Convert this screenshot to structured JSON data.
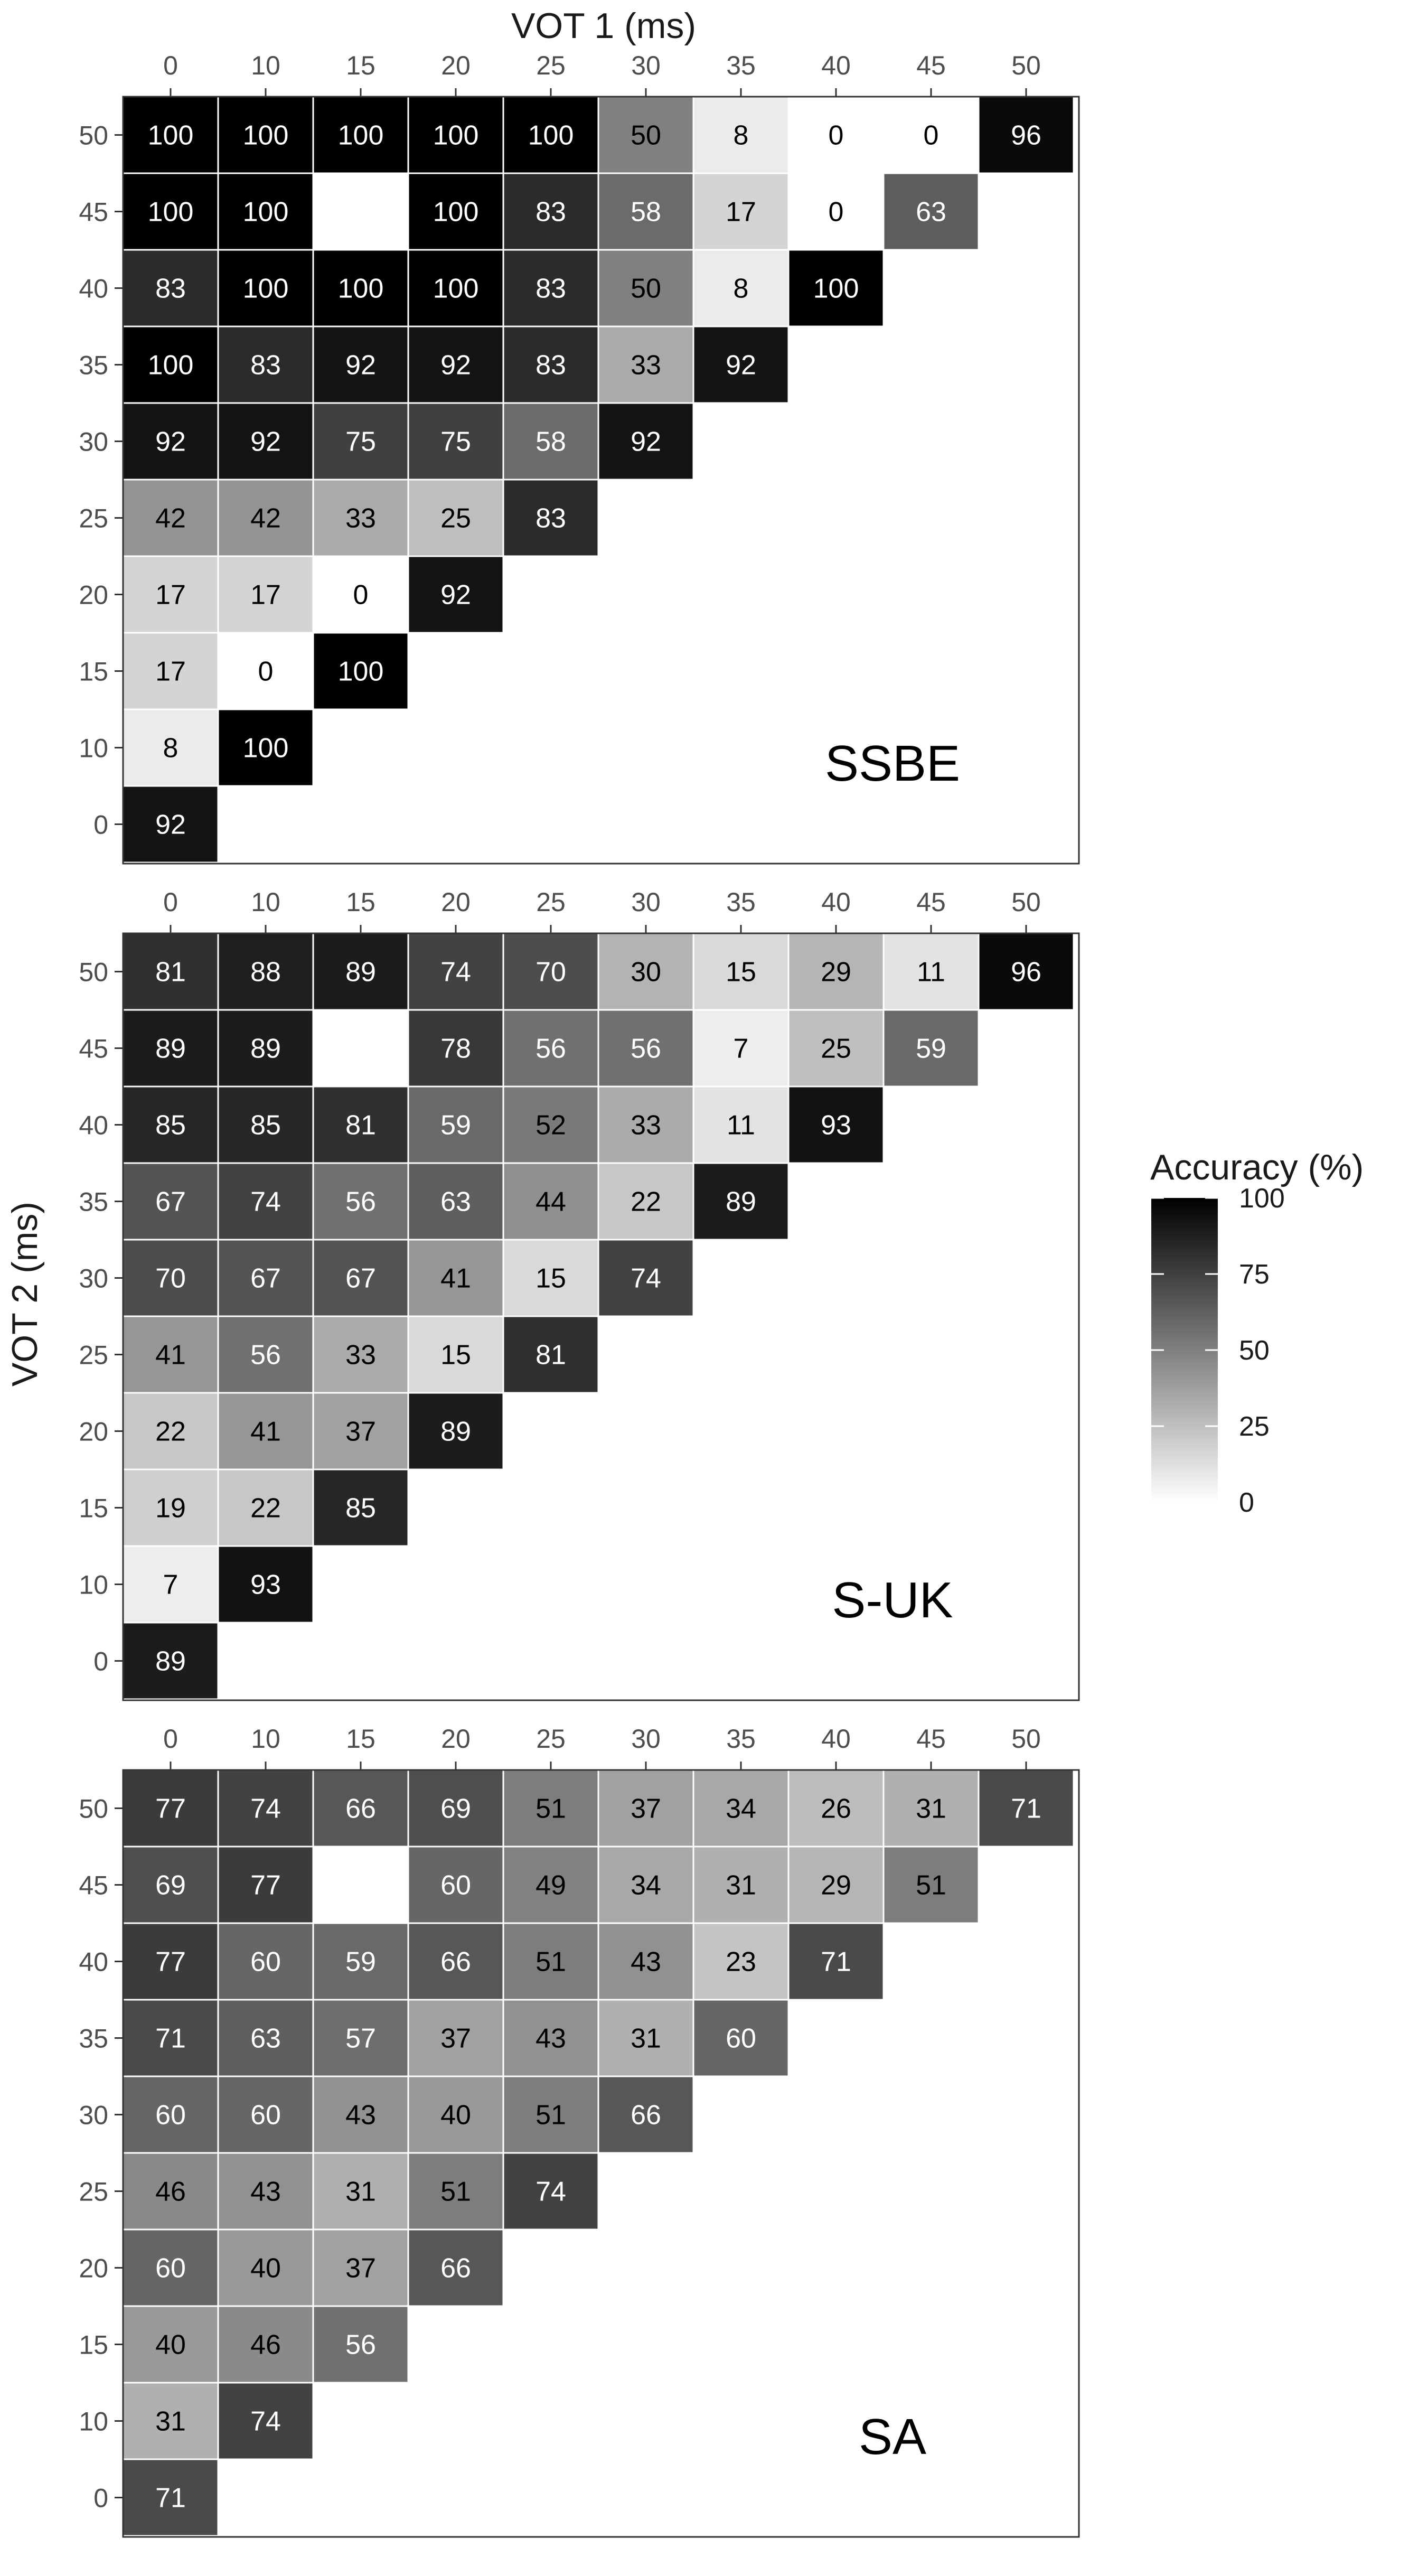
{
  "xlabel": "VOT 1 (ms)",
  "ylabel": "VOT 2 (ms)",
  "legend": {
    "title": "Accuracy (%)",
    "ticks": [
      0,
      25,
      50,
      75,
      100
    ],
    "range": [
      0,
      100
    ],
    "colors": {
      "low": "#ffffff",
      "high": "#000000"
    },
    "placement": "right"
  },
  "chart_data": [
    {
      "type": "heatmap",
      "title": "SSBE",
      "x": [
        0,
        10,
        15,
        20,
        25,
        30,
        35,
        40,
        45,
        50
      ],
      "y": [
        50,
        45,
        40,
        35,
        30,
        25,
        20,
        15,
        10,
        0
      ],
      "values": [
        [
          100,
          100,
          100,
          100,
          100,
          50,
          8,
          0,
          0,
          96
        ],
        [
          100,
          100,
          null,
          100,
          83,
          58,
          17,
          0,
          63
        ],
        [
          83,
          100,
          100,
          100,
          83,
          50,
          8,
          100
        ],
        [
          100,
          83,
          92,
          92,
          83,
          33,
          92
        ],
        [
          92,
          92,
          75,
          75,
          58,
          92
        ],
        [
          42,
          42,
          33,
          25,
          83
        ],
        [
          17,
          17,
          0,
          92
        ],
        [
          17,
          0,
          100
        ],
        [
          8,
          100
        ],
        [
          92
        ]
      ],
      "value_range": [
        0,
        100
      ]
    },
    {
      "type": "heatmap",
      "title": "S-UK",
      "x": [
        0,
        10,
        15,
        20,
        25,
        30,
        35,
        40,
        45,
        50
      ],
      "y": [
        50,
        45,
        40,
        35,
        30,
        25,
        20,
        15,
        10,
        0
      ],
      "values": [
        [
          81,
          88,
          89,
          74,
          70,
          30,
          15,
          29,
          11,
          96
        ],
        [
          89,
          89,
          null,
          78,
          56,
          56,
          7,
          25,
          59
        ],
        [
          85,
          85,
          81,
          59,
          52,
          33,
          11,
          93
        ],
        [
          67,
          74,
          56,
          63,
          44,
          22,
          89
        ],
        [
          70,
          67,
          67,
          41,
          15,
          74
        ],
        [
          41,
          56,
          33,
          15,
          81
        ],
        [
          22,
          41,
          37,
          89
        ],
        [
          19,
          22,
          85
        ],
        [
          7,
          93
        ],
        [
          89
        ]
      ],
      "value_range": [
        0,
        100
      ]
    },
    {
      "type": "heatmap",
      "title": "SA",
      "x": [
        0,
        10,
        15,
        20,
        25,
        30,
        35,
        40,
        45,
        50
      ],
      "y": [
        50,
        45,
        40,
        35,
        30,
        25,
        20,
        15,
        10,
        0
      ],
      "values": [
        [
          77,
          74,
          66,
          69,
          51,
          37,
          34,
          26,
          31,
          71
        ],
        [
          69,
          77,
          null,
          60,
          49,
          34,
          31,
          29,
          51
        ],
        [
          77,
          60,
          59,
          66,
          51,
          43,
          23,
          71
        ],
        [
          71,
          63,
          57,
          37,
          43,
          31,
          60
        ],
        [
          60,
          60,
          43,
          40,
          51,
          66
        ],
        [
          46,
          43,
          31,
          51,
          74
        ],
        [
          60,
          40,
          37,
          66
        ],
        [
          40,
          46,
          56
        ],
        [
          31,
          74
        ],
        [
          71
        ]
      ],
      "value_range": [
        0,
        100
      ]
    }
  ]
}
